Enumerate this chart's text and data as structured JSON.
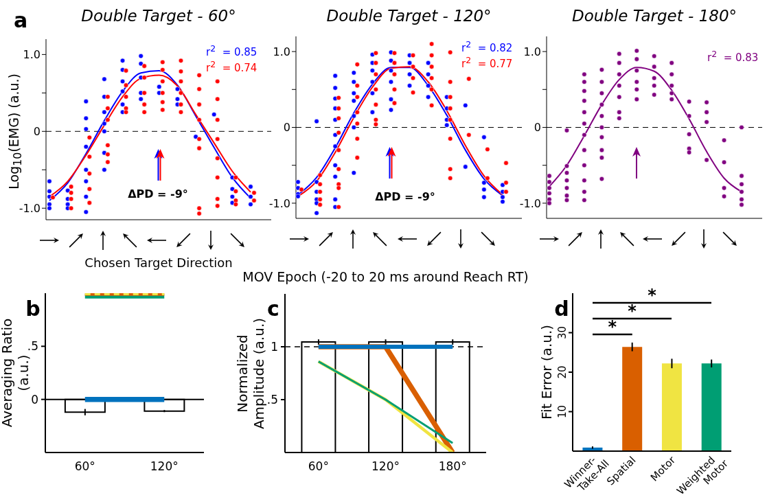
{
  "chart_data": [
    {
      "type": "scatter",
      "title": "Double Target - 60°",
      "xlabel": "Chosen Target Direction",
      "ylabel": "Log$_{10}$(EMG) (a.u.)",
      "annotations": [
        "a",
        "ΔPD = -9°"
      ],
      "categories": [
        null,
        null,
        null,
        null,
        null,
        null,
        null,
        null,
        null,
        null,
        null,
        null
      ],
      "ylim": [
        -1.15,
        1.2
      ],
      "yticks": [
        {
          "value": -1,
          "label": "-1.0"
        },
        {
          "value": -0.5,
          "label": null
        },
        0,
        {
          "value": 0.5,
          "label": null
        },
        {
          "value": 1,
          "label": "1.0"
        }
      ],
      "marker": "circle",
      "ref_lines": [
        {
          "axis": "y",
          "value": 0,
          "color": "#000000",
          "line_style": "dashed"
        }
      ],
      "series": [
        {
          "color": "#0000ff",
          "values": [
            -0.65,
            -0.77,
            0.39,
            0.68,
            0.92,
            0.98,
            0.58,
            0.55,
            -0.07,
            0.22,
            -0.6,
            -0.72
          ]
        },
        {
          "color": "#0000ff",
          "values": [
            -0.78,
            -0.88,
            0.17,
            0.45,
            0.8,
            0.88,
            0.5,
            0.42,
            null,
            null,
            -0.75,
            -0.85
          ]
        },
        {
          "color": "#0000ff",
          "values": [
            -0.85,
            -0.95,
            0.03,
            0.25,
            0.65,
            0.7,
            null,
            0.35,
            null,
            null,
            -0.85,
            -0.95
          ]
        },
        {
          "color": "#0000ff",
          "values": [
            -0.95,
            -1.0,
            -0.2,
            0.1,
            0.52,
            0.5,
            null,
            null,
            null,
            null,
            -0.93,
            null
          ]
        },
        {
          "color": "#0000ff",
          "values": [
            -1.0,
            null,
            -0.5,
            0.0,
            0.35,
            0.42,
            null,
            null,
            null,
            null,
            null,
            null
          ]
        },
        {
          "color": "#0000ff",
          "values": [
            null,
            null,
            -0.65,
            -0.28,
            0.25,
            null,
            null,
            null,
            null,
            null,
            null,
            null
          ]
        },
        {
          "color": "#0000ff",
          "values": [
            null,
            null,
            -0.85,
            -0.5,
            null,
            null,
            null,
            null,
            null,
            null,
            null,
            null
          ]
        },
        {
          "color": "#0000ff",
          "values": [
            null,
            null,
            -1.05,
            null,
            null,
            null,
            null,
            null,
            null,
            null,
            null,
            null
          ]
        },
        {
          "color": "#ff0000",
          "values": [
            -0.86,
            -0.72,
            -0.08,
            0.45,
            0.79,
            0.85,
            0.9,
            0.92,
            0.73,
            0.65,
            -0.6,
            -0.8
          ]
        },
        {
          "color": "#ff0000",
          "values": [
            null,
            -0.8,
            -0.33,
            0.3,
            0.6,
            0.7,
            0.8,
            0.78,
            0.55,
            0.42,
            -0.78,
            -0.9
          ]
        },
        {
          "color": "#ff0000",
          "values": [
            null,
            -0.88,
            -0.55,
            0.15,
            0.45,
            0.5,
            0.65,
            0.65,
            0.35,
            0.15,
            -0.9,
            null
          ]
        },
        {
          "color": "#ff0000",
          "values": [
            null,
            -1.0,
            -0.75,
            -0.18,
            0.3,
            0.35,
            0.5,
            0.5,
            0.15,
            -0.1,
            -0.95,
            null
          ]
        },
        {
          "color": "#ff0000",
          "values": [
            null,
            null,
            -0.93,
            -0.3,
            0.25,
            0.25,
            0.38,
            0.35,
            -0.1,
            -0.35,
            null,
            null
          ]
        },
        {
          "color": "#ff0000",
          "values": [
            null,
            null,
            null,
            -0.4,
            null,
            null,
            0.28,
            0.25,
            -0.22,
            -0.6,
            null,
            null
          ]
        },
        {
          "color": "#ff0000",
          "values": [
            null,
            null,
            null,
            null,
            null,
            null,
            null,
            null,
            -1.0,
            -0.88,
            null,
            null
          ]
        },
        {
          "color": "#ff0000",
          "values": [
            null,
            null,
            null,
            null,
            null,
            null,
            null,
            null,
            -1.07,
            -0.97,
            null,
            null
          ]
        },
        {
          "type": "line",
          "marker": "none",
          "name": "r$^{2}$  = 0.85",
          "color": "#0000ff",
          "values": [
            -0.9,
            -0.67,
            -0.29,
            0.14,
            0.52,
            0.76,
            0.79,
            0.6,
            0.2,
            -0.21,
            -0.6,
            -0.87
          ]
        },
        {
          "type": "line",
          "marker": "none",
          "name": "r$^{2}$  = 0.74",
          "color": "#ff0000",
          "values": [
            -0.85,
            -0.65,
            -0.31,
            0.08,
            0.45,
            0.69,
            0.73,
            0.59,
            0.22,
            -0.15,
            -0.52,
            -0.79
          ]
        }
      ]
    },
    {
      "type": "scatter",
      "title": "Double Target - 120°",
      "annotations": [
        "ΔPD = -9°"
      ],
      "categories": [
        null,
        null,
        null,
        null,
        null,
        null,
        null,
        null,
        null,
        null,
        null,
        null
      ],
      "ylim": [
        -1.2,
        1.2
      ],
      "yticks": [
        {
          "value": -1,
          "label": "-1.0"
        },
        {
          "value": -0.5,
          "label": null
        },
        0,
        {
          "value": 0.5,
          "label": null
        },
        {
          "value": 1,
          "label": "1.0"
        }
      ],
      "marker": "circle",
      "ref_lines": [
        {
          "axis": "y",
          "value": 0,
          "color": "#000000",
          "line_style": "dashed"
        }
      ],
      "series": [
        {
          "color": "#0000ff",
          "values": [
            -0.72,
            0.08,
            0.68,
            0.72,
            0.96,
            0.99,
            0.95,
            0.85,
            0.4,
            0.29,
            -0.13,
            -0.76
          ]
        },
        {
          "color": "#0000ff",
          "values": [
            -0.8,
            -0.72,
            0.52,
            0.6,
            0.85,
            0.88,
            0.85,
            0.7,
            0.25,
            -0.52,
            -0.73,
            -0.85
          ]
        },
        {
          "color": "#0000ff",
          "values": [
            -0.88,
            -0.85,
            0.38,
            0.45,
            0.75,
            0.75,
            0.7,
            0.55,
            0.1,
            null,
            -0.82,
            -0.92
          ]
        },
        {
          "color": "#0000ff",
          "values": [
            -0.91,
            -0.95,
            0.25,
            0.35,
            0.6,
            0.6,
            0.55,
            0.4,
            0.03,
            null,
            -0.92,
            -0.98
          ]
        },
        {
          "color": "#0000ff",
          "values": [
            null,
            -1.0,
            0.1,
            0.15,
            0.45,
            0.37,
            null,
            null,
            null,
            null,
            null,
            null
          ]
        },
        {
          "color": "#0000ff",
          "values": [
            null,
            -1.13,
            -0.1,
            0.0,
            0.2,
            0.23,
            null,
            null,
            null,
            null,
            null,
            null
          ]
        },
        {
          "color": "#0000ff",
          "values": [
            null,
            null,
            -0.25,
            -0.6,
            null,
            null,
            null,
            null,
            null,
            null,
            null,
            null
          ]
        },
        {
          "color": "#0000ff",
          "values": [
            null,
            null,
            -0.5,
            null,
            null,
            null,
            null,
            null,
            null,
            null,
            null,
            null
          ]
        },
        {
          "color": "#0000ff",
          "values": [
            null,
            null,
            -0.65,
            null,
            null,
            null,
            null,
            null,
            null,
            null,
            null,
            null
          ]
        },
        {
          "color": "#0000ff",
          "values": [
            null,
            null,
            -0.95,
            null,
            null,
            null,
            null,
            null,
            null,
            null,
            null,
            null
          ]
        },
        {
          "color": "#0000ff",
          "values": [
            null,
            null,
            -1.05,
            null,
            null,
            null,
            null,
            null,
            null,
            null,
            null,
            null
          ]
        },
        {
          "color": "#ff0000",
          "values": [
            -0.82,
            -0.63,
            0.39,
            0.83,
            0.98,
            0.98,
            0.95,
            1.1,
            0.99,
            0.64,
            -0.29,
            -0.47
          ]
        },
        {
          "color": "#ff0000",
          "values": [
            null,
            -0.75,
            0.25,
            0.55,
            0.85,
            0.85,
            0.8,
            0.95,
            0.6,
            -0.1,
            -0.67,
            -0.73
          ]
        },
        {
          "color": "#ff0000",
          "values": [
            null,
            -0.85,
            0.12,
            0.4,
            0.7,
            0.7,
            0.65,
            0.8,
            0.4,
            null,
            null,
            -0.85
          ]
        },
        {
          "color": "#ff0000",
          "values": [
            null,
            -0.95,
            -0.07,
            0.2,
            0.5,
            0.5,
            0.46,
            0.65,
            0.25,
            null,
            null,
            null
          ]
        },
        {
          "color": "#ff0000",
          "values": [
            null,
            -1.02,
            -0.3,
            0.05,
            0.3,
            0.32,
            null,
            0.5,
            0.1,
            null,
            null,
            null
          ]
        },
        {
          "color": "#ff0000",
          "values": [
            null,
            null,
            -0.55,
            -0.15,
            0.1,
            null,
            null,
            0.29,
            -0.15,
            null,
            null,
            null
          ]
        },
        {
          "color": "#ff0000",
          "values": [
            null,
            null,
            -0.75,
            -0.4,
            0.04,
            null,
            null,
            null,
            -0.55,
            null,
            null,
            null
          ]
        },
        {
          "color": "#ff0000",
          "values": [
            null,
            null,
            -0.8,
            null,
            null,
            null,
            null,
            null,
            -0.67,
            null,
            null,
            null
          ]
        },
        {
          "color": "#ff0000",
          "values": [
            null,
            null,
            -1.05,
            null,
            null,
            null,
            null,
            null,
            null,
            null,
            null,
            null
          ]
        },
        {
          "type": "line",
          "marker": "none",
          "name": "r$^{2}$  = 0.82",
          "color": "#0000ff",
          "values": [
            -0.89,
            -0.66,
            -0.27,
            0.19,
            0.57,
            0.79,
            0.79,
            0.55,
            0.16,
            -0.3,
            -0.68,
            -0.9
          ]
        },
        {
          "type": "line",
          "marker": "none",
          "name": "r$^{2}$  = 0.77",
          "color": "#ff0000",
          "values": [
            -0.91,
            -0.71,
            -0.33,
            0.13,
            0.53,
            0.78,
            0.8,
            0.6,
            0.22,
            -0.24,
            -0.64,
            -0.89
          ]
        }
      ]
    },
    {
      "type": "scatter",
      "title": "Double Target - 180°",
      "categories": [
        null,
        null,
        null,
        null,
        null,
        null,
        null,
        null,
        null,
        null,
        null,
        null
      ],
      "ylim": [
        -1.2,
        1.2
      ],
      "yticks": [
        {
          "value": -1,
          "label": "-1.0"
        },
        {
          "value": -0.5,
          "label": null
        },
        0,
        {
          "value": 0.5,
          "label": null
        },
        {
          "value": 1,
          "label": "1.0"
        }
      ],
      "marker": "circle",
      "ref_lines": [
        {
          "axis": "y",
          "value": 0,
          "color": "#000000",
          "line_style": "dashed"
        }
      ],
      "series": [
        {
          "color": "#800080",
          "values": [
            -0.64,
            -0.04,
            0.7,
            0.76,
            0.97,
            1.01,
            0.94,
            0.85,
            0.34,
            0.33,
            -0.17,
            0.0
          ]
        },
        {
          "color": "#800080",
          "values": [
            -0.72,
            -0.51,
            0.6,
            0.6,
            0.85,
            0.9,
            0.8,
            0.7,
            0.15,
            0.2,
            -0.46,
            -0.64
          ]
        },
        {
          "color": "#800080",
          "values": [
            -0.8,
            -0.6,
            0.48,
            0.45,
            0.7,
            0.75,
            0.65,
            0.55,
            -0.09,
            0.07,
            -0.8,
            -0.75
          ]
        },
        {
          "color": "#800080",
          "values": [
            -0.87,
            -0.7,
            0.35,
            0.3,
            0.55,
            0.6,
            0.55,
            0.45,
            -0.28,
            -0.43,
            -0.91,
            -0.85
          ]
        },
        {
          "color": "#800080",
          "values": [
            -0.95,
            -0.8,
            0.2,
            0.15,
            0.4,
            0.5,
            0.43,
            0.37,
            -0.33,
            null,
            null,
            -0.95
          ]
        },
        {
          "color": "#800080",
          "values": [
            -1.0,
            -0.9,
            0.05,
            0.0,
            0.2,
            0.37,
            null,
            null,
            null,
            null,
            null,
            -1.02
          ]
        },
        {
          "color": "#800080",
          "values": [
            null,
            -0.96,
            -0.1,
            -0.13,
            0.12,
            null,
            null,
            null,
            null,
            null,
            null,
            null
          ]
        },
        {
          "color": "#800080",
          "values": [
            null,
            null,
            -0.3,
            -0.3,
            null,
            null,
            null,
            null,
            null,
            null,
            null,
            null
          ]
        },
        {
          "color": "#800080",
          "values": [
            null,
            null,
            -0.5,
            -0.4,
            null,
            null,
            null,
            null,
            null,
            null,
            null,
            null
          ]
        },
        {
          "color": "#800080",
          "values": [
            null,
            null,
            -0.7,
            -0.68,
            null,
            null,
            null,
            null,
            null,
            null,
            null,
            null
          ]
        },
        {
          "color": "#800080",
          "values": [
            null,
            null,
            -0.85,
            null,
            null,
            null,
            null,
            null,
            null,
            null,
            null,
            null
          ]
        },
        {
          "color": "#800080",
          "values": [
            null,
            null,
            -0.96,
            null,
            null,
            null,
            null,
            null,
            null,
            null,
            null,
            null
          ]
        },
        {
          "type": "line",
          "marker": "none",
          "name": "r$^{2}$  = 0.83",
          "color": "#800080",
          "values": [
            -0.78,
            -0.5,
            -0.11,
            0.3,
            0.63,
            0.79,
            0.74,
            0.49,
            0.11,
            -0.32,
            -0.67,
            -0.85
          ]
        }
      ]
    },
    {
      "type": "bar",
      "categories": [
        "60°",
        "120°"
      ],
      "ylabel": "Averaging Ratio (a.u.)",
      "annotations": [
        "b"
      ],
      "ylim": [
        -0.5,
        1.0
      ],
      "yticks": [
        0,
        {
          "value": 0.5,
          "label": ".5"
        }
      ],
      "ref_lines": [
        {
          "axis": "y",
          "value": 0,
          "color": "#000000"
        }
      ],
      "series": [
        {
          "color": "#ffffff",
          "values": [
            -0.12,
            -0.11
          ],
          "errors": [
            0.03,
            0.01
          ]
        },
        {
          "type": "line",
          "color": "#0072bd",
          "values": [
            0,
            0
          ]
        },
        {
          "type": "line",
          "color": "#009e73",
          "values": [
            0.97,
            0.97
          ]
        },
        {
          "type": "line",
          "color": "#d95f02",
          "values": [
            0.99,
            0.99
          ]
        },
        {
          "type": "line",
          "color": "#f0e442",
          "values": [
            0.99,
            0.99
          ],
          "line_style": "dashed"
        }
      ]
    },
    {
      "type": "bar",
      "title": "MOV Epoch (-20 to 20 ms around Reach RT)",
      "categories": [
        "60°",
        "120°",
        "180°"
      ],
      "ylabel": "Normalized Amplitude (a.u.)",
      "annotations": [
        "c"
      ],
      "ylim": [
        0,
        1.5
      ],
      "yticks": [
        {
          "value": 0.5,
          "label": ".5"
        },
        1
      ],
      "ref_lines": [
        {
          "axis": "y",
          "value": 1,
          "color": "#000000",
          "line_style": "dashed"
        }
      ],
      "series": [
        {
          "color": "#ffffff",
          "values": [
            1.045,
            1.045,
            1.045
          ],
          "errors": [
            0.025,
            0.025,
            0.025
          ]
        },
        {
          "type": "line",
          "color": "#d95f02",
          "values": [
            1,
            1,
            0
          ]
        },
        {
          "type": "line",
          "color": "#0072bd",
          "values": [
            1,
            1,
            1
          ]
        },
        {
          "type": "line",
          "color": "#f0e442",
          "values": [
            0.86,
            0.5,
            0
          ]
        },
        {
          "type": "line",
          "color": "#009e73",
          "values": [
            0.86,
            0.5,
            0.09
          ]
        }
      ]
    },
    {
      "type": "bar",
      "categories": [
        "Winner-Take-All",
        "Spatial",
        "Motor",
        "Weighted Motor"
      ],
      "ylabel": "Fit Error (a.u.)",
      "annotations": [
        "d",
        "*",
        "*",
        "*"
      ],
      "ylim": [
        0,
        40
      ],
      "yticks": [
        10,
        20,
        30
      ],
      "series": [
        {
          "colors": [
            "#0072bd",
            "#d95f00",
            "#f0e442",
            "#009e73"
          ],
          "values": [
            0.9,
            26.4,
            22.2,
            22.2
          ],
          "errors": [
            0.3,
            1.1,
            1.2,
            1.0
          ]
        }
      ]
    }
  ]
}
